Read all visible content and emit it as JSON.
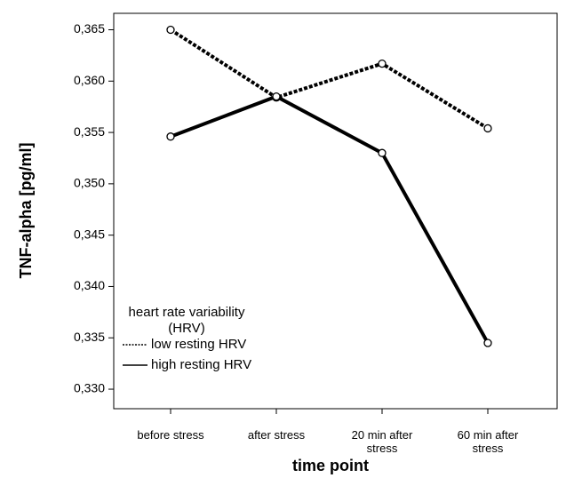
{
  "chart_data": {
    "type": "line",
    "y_label": "TNF-alpha [pg/ml]",
    "x_label": "time point",
    "categories": [
      "before stress",
      "after stress",
      "20 min after stress",
      "60 min after stress"
    ],
    "series": [
      {
        "name": "low resting HRV",
        "color": "#000000",
        "style": "dotted",
        "values": [
          0.365,
          0.3584,
          0.3617,
          0.3554
        ]
      },
      {
        "name": "high resting HRV",
        "color": "#000000",
        "style": "solid",
        "values": [
          0.3546,
          0.3585,
          0.353,
          0.3345
        ]
      }
    ],
    "legend_title": "heart rate variability (HRV)",
    "legend": "lower-left",
    "ylim": [
      0.3281,
      0.3666
    ],
    "yticks": [
      {
        "value": 0.33,
        "label": "0,330"
      },
      {
        "value": 0.335,
        "label": "0,335"
      },
      {
        "value": 0.34,
        "label": "0,340"
      },
      {
        "value": 0.345,
        "label": "0,345"
      },
      {
        "value": 0.35,
        "label": "0,350"
      },
      {
        "value": 0.355,
        "label": "0,355"
      },
      {
        "value": 0.36,
        "label": "0,360"
      },
      {
        "value": 0.365,
        "label": "0,365"
      }
    ],
    "grid": false
  }
}
